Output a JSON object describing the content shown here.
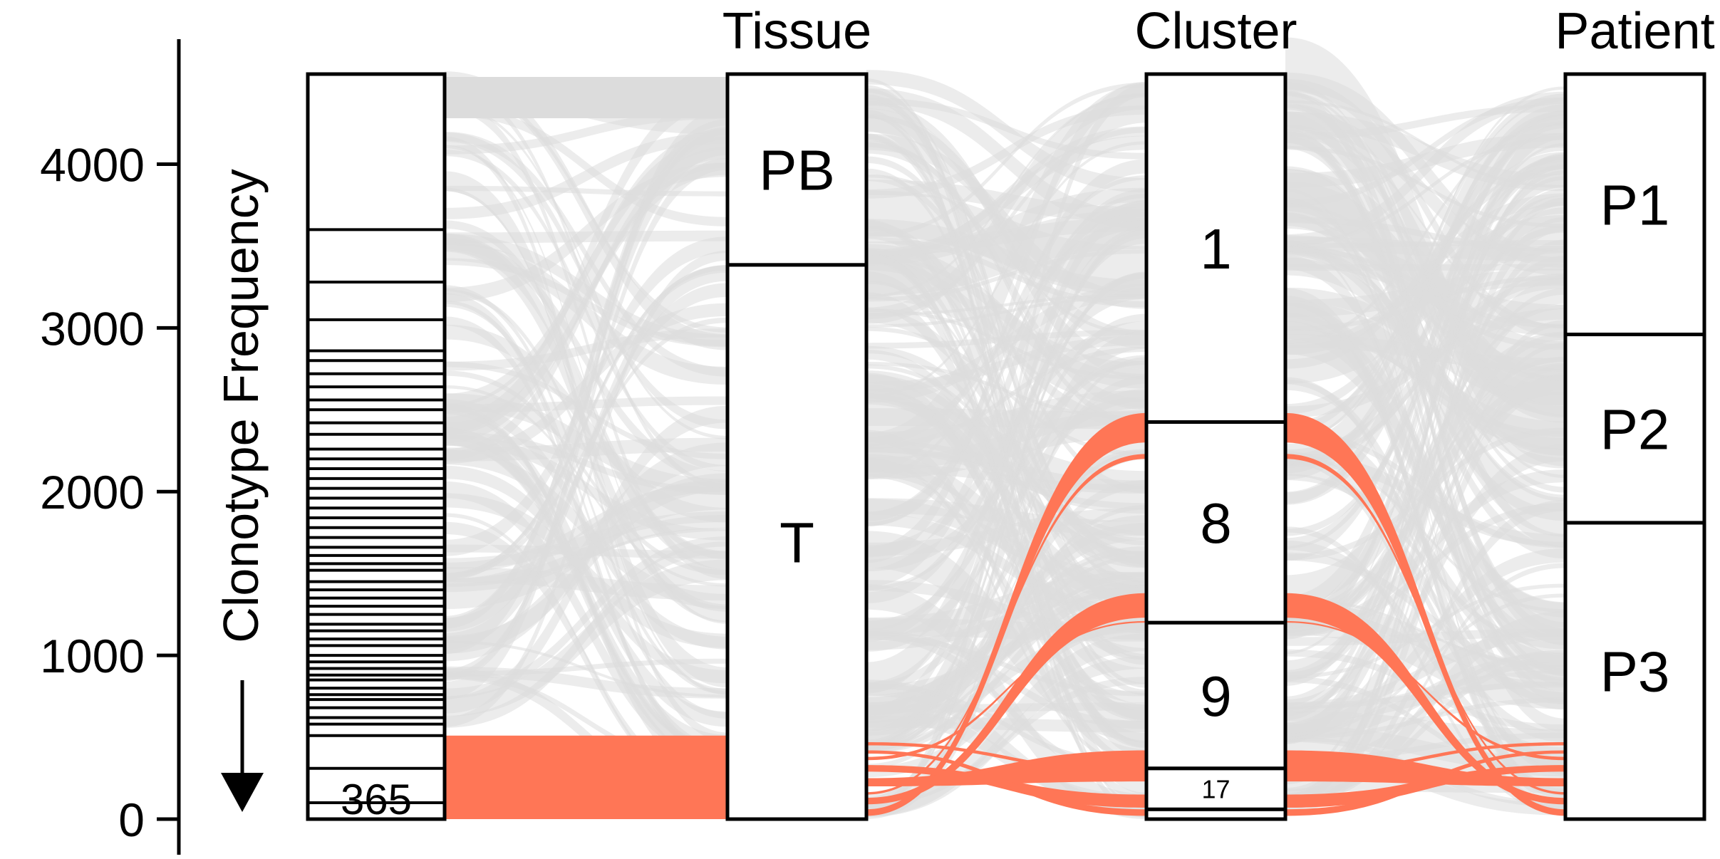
{
  "chart_data": {
    "type": "alluvial",
    "ylabel": "Clonotype Frequency",
    "yticks": [
      0,
      1000,
      2000,
      3000,
      4000
    ],
    "ylim": [
      0,
      4550
    ],
    "axes": [
      {
        "id": "clonotype",
        "title": "",
        "label_box": "365",
        "highlight_total": 510,
        "dividers": [
          100,
          310,
          510,
          580,
          620,
          680,
          730,
          760,
          800,
          850,
          880,
          920,
          960,
          1000,
          1060,
          1100,
          1150,
          1190,
          1250,
          1300,
          1350,
          1400,
          1450,
          1520,
          1560,
          1610,
          1660,
          1720,
          1780,
          1840,
          1900,
          1960,
          2020,
          2080,
          2140,
          2200,
          2260,
          2350,
          2420,
          2500,
          2560,
          2640,
          2720,
          2800,
          2860,
          3050,
          3280,
          3600
        ]
      },
      {
        "id": "tissue",
        "title": "Tissue",
        "strata": [
          {
            "label": "T",
            "from": 0,
            "to": 3385
          },
          {
            "label": "PB",
            "from": 3385,
            "to": 4550
          }
        ]
      },
      {
        "id": "cluster",
        "title": "Cluster",
        "strata": [
          {
            "label": "",
            "from": 0,
            "to": 60
          },
          {
            "label": "17",
            "from": 60,
            "to": 310
          },
          {
            "label": "9",
            "from": 310,
            "to": 1200
          },
          {
            "label": "8",
            "from": 1200,
            "to": 2425
          },
          {
            "label": "1",
            "from": 2425,
            "to": 4550
          }
        ]
      },
      {
        "id": "patient",
        "title": "Patient",
        "strata": [
          {
            "label": "P3",
            "from": 0,
            "to": 1810
          },
          {
            "label": "P2",
            "from": 1810,
            "to": 2960
          },
          {
            "label": "P1",
            "from": 2960,
            "to": 4550
          }
        ]
      }
    ],
    "colors": {
      "highlight": "#FF7656",
      "flow": "#DCDCDC"
    }
  }
}
